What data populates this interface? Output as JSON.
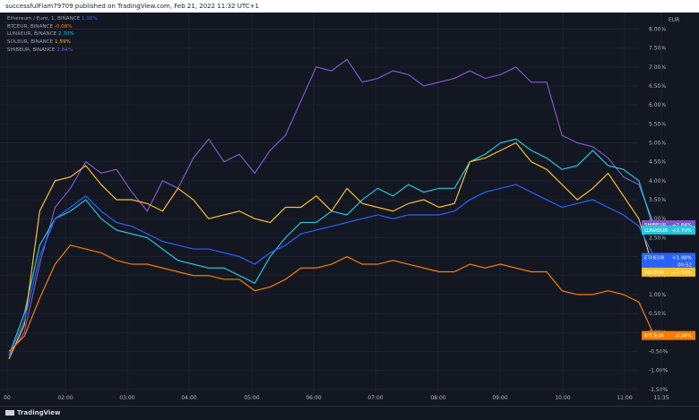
{
  "header": {
    "text": "successfulFlam79709 published on TradingView.com, Feb 21, 2022 11:32 UTC+1"
  },
  "legend": [
    {
      "name": "Ethereum / Euro, 1, BINANCE",
      "value": "1.98%",
      "color": "#2962ff"
    },
    {
      "name": "BTCEUR, BINANCE",
      "value": "-0.08%",
      "color": "#f57c00"
    },
    {
      "name": "LUNAEUR, BINANCE",
      "value": "2.70%",
      "color": "#26c6da"
    },
    {
      "name": "SOLEUR, BINANCE",
      "value": "1.59%",
      "color": "#fbc02d"
    },
    {
      "name": "SHIBEUR, BINANCE",
      "value": "2.84%",
      "color": "#7e57c2"
    }
  ],
  "axis": {
    "currency": "EUR",
    "y_ticks": [
      "8.00%",
      "7.50%",
      "7.00%",
      "6.50%",
      "6.00%",
      "5.50%",
      "5.00%",
      "4.50%",
      "4.00%",
      "3.50%",
      "3.00%",
      "2.50%",
      "2.00%",
      "1.50%",
      "1.00%",
      "0.50%",
      "0.00%",
      "-0.50%",
      "-1.00%",
      "-1.50%"
    ],
    "x_ticks": [
      "00",
      "02:00",
      "03:00",
      "04:00",
      "05:00",
      "06:00",
      "07:00",
      "08:00",
      "09:00",
      "10:00",
      "11:00",
      "11:35"
    ]
  },
  "labels": [
    {
      "text": "SHIBEUR",
      "value": "+2.84%",
      "color": "#7e57c2"
    },
    {
      "text": "LUNAEUR",
      "value": "+2.70%",
      "color": "#26c6da"
    },
    {
      "text": "ETHEUR",
      "value": "+1.98%",
      "color": "#2962ff",
      "extra": "00:52"
    },
    {
      "text": "SOLEUR",
      "value": "+1.59%",
      "color": "#fbc02d"
    },
    {
      "text": "BTCEUR",
      "value": "-0.08%",
      "color": "#f57c00"
    }
  ],
  "brand": "TradingView",
  "chart_data": {
    "type": "line",
    "x": [
      "01:00",
      "01:15",
      "01:30",
      "01:45",
      "02:00",
      "02:15",
      "02:30",
      "02:45",
      "03:00",
      "03:15",
      "03:30",
      "03:45",
      "04:00",
      "04:15",
      "04:30",
      "04:45",
      "05:00",
      "05:15",
      "05:30",
      "05:45",
      "06:00",
      "06:15",
      "06:30",
      "06:45",
      "07:00",
      "07:15",
      "07:30",
      "07:45",
      "08:00",
      "08:15",
      "08:30",
      "08:45",
      "09:00",
      "09:15",
      "09:30",
      "09:45",
      "10:00",
      "10:15",
      "10:30",
      "10:45",
      "11:00",
      "11:15",
      "11:30"
    ],
    "ylim": [
      -1.6,
      8.2
    ],
    "series": [
      {
        "name": "SHIBEUR",
        "color": "#7e57c2",
        "values": [
          -0.6,
          0.0,
          1.8,
          3.3,
          3.8,
          4.5,
          4.2,
          4.3,
          3.7,
          3.2,
          4.0,
          3.8,
          4.6,
          5.1,
          4.5,
          4.7,
          4.2,
          4.8,
          5.2,
          6.1,
          7.0,
          6.9,
          7.2,
          6.6,
          6.7,
          6.9,
          6.8,
          6.5,
          6.6,
          6.7,
          6.9,
          6.7,
          6.8,
          7.0,
          6.6,
          6.6,
          5.2,
          5.0,
          4.9,
          4.6,
          4.1,
          3.9,
          2.84
        ]
      },
      {
        "name": "LUNAEUR",
        "color": "#26c6da",
        "values": [
          -0.6,
          0.5,
          2.3,
          3.0,
          3.2,
          3.5,
          3.0,
          2.7,
          2.6,
          2.5,
          2.2,
          1.9,
          1.8,
          1.7,
          1.7,
          1.5,
          1.3,
          2.0,
          2.5,
          2.9,
          2.9,
          3.2,
          3.1,
          3.5,
          3.8,
          3.6,
          3.9,
          3.7,
          3.8,
          3.8,
          4.5,
          4.7,
          5.0,
          5.1,
          4.8,
          4.6,
          4.3,
          4.4,
          4.8,
          4.4,
          4.3,
          4.0,
          2.7
        ]
      },
      {
        "name": "SOLEUR",
        "color": "#fbc02d",
        "values": [
          -0.7,
          0.2,
          3.2,
          4.0,
          4.1,
          4.4,
          3.9,
          3.5,
          3.5,
          3.4,
          3.2,
          3.8,
          3.5,
          3.0,
          3.1,
          3.2,
          3.0,
          2.9,
          3.3,
          3.3,
          3.6,
          3.2,
          3.8,
          3.4,
          3.3,
          3.2,
          3.4,
          3.5,
          3.3,
          3.4,
          4.5,
          4.6,
          4.8,
          5.0,
          4.5,
          4.3,
          3.9,
          3.5,
          3.8,
          4.2,
          3.6,
          3.0,
          1.59
        ]
      },
      {
        "name": "ETHEUR",
        "color": "#2962ff",
        "values": [
          -0.6,
          0.3,
          2.0,
          3.0,
          3.3,
          3.6,
          3.2,
          2.9,
          2.8,
          2.6,
          2.4,
          2.3,
          2.2,
          2.2,
          2.1,
          2.0,
          1.8,
          2.1,
          2.3,
          2.6,
          2.7,
          2.8,
          2.9,
          3.0,
          3.1,
          3.0,
          3.1,
          3.1,
          3.1,
          3.2,
          3.5,
          3.7,
          3.8,
          3.9,
          3.7,
          3.5,
          3.3,
          3.4,
          3.5,
          3.3,
          3.1,
          2.8,
          1.98
        ]
      },
      {
        "name": "BTCEUR",
        "color": "#f57c00",
        "values": [
          -0.5,
          -0.1,
          0.9,
          1.8,
          2.3,
          2.2,
          2.1,
          1.9,
          1.8,
          1.8,
          1.7,
          1.6,
          1.5,
          1.5,
          1.4,
          1.4,
          1.1,
          1.2,
          1.4,
          1.7,
          1.7,
          1.8,
          2.0,
          1.8,
          1.8,
          1.9,
          1.8,
          1.7,
          1.6,
          1.6,
          1.8,
          1.7,
          1.8,
          1.7,
          1.6,
          1.6,
          1.1,
          1.0,
          1.0,
          1.1,
          1.0,
          0.8,
          -0.08
        ]
      }
    ]
  }
}
